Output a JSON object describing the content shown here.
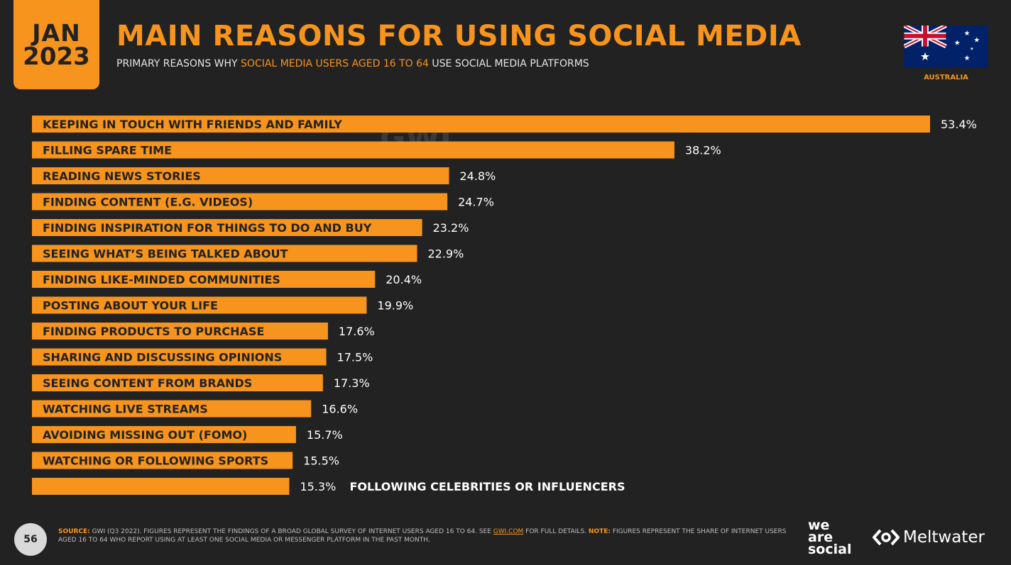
{
  "header": {
    "month": "JAN",
    "year": "2023",
    "title": "MAIN REASONS FOR USING SOCIAL MEDIA",
    "subtitle_pre": "PRIMARY REASONS WHY ",
    "subtitle_hl": "SOCIAL MEDIA USERS AGED 16 TO 64",
    "subtitle_post": " USE SOCIAL MEDIA PLATFORMS",
    "country": "AUSTRALIA"
  },
  "watermark": "GWI.",
  "chart_data": {
    "type": "bar",
    "orientation": "horizontal",
    "categories": [
      "KEEPING IN TOUCH WITH FRIENDS AND FAMILY",
      "FILLING SPARE TIME",
      "READING NEWS STORIES",
      "FINDING CONTENT (E.G. VIDEOS)",
      "FINDING INSPIRATION FOR THINGS TO DO AND BUY",
      "SEEING WHAT’S BEING TALKED ABOUT",
      "FINDING LIKE-MINDED COMMUNITIES",
      "POSTING ABOUT YOUR LIFE",
      "FINDING PRODUCTS TO PURCHASE",
      "SHARING AND DISCUSSING OPINIONS",
      "SEEING CONTENT FROM BRANDS",
      "WATCHING LIVE STREAMS",
      "AVOIDING MISSING OUT (FOMO)",
      "WATCHING OR FOLLOWING SPORTS",
      "FOLLOWING CELEBRITIES OR INFLUENCERS"
    ],
    "values": [
      53.4,
      38.2,
      24.8,
      24.7,
      23.2,
      22.9,
      20.4,
      19.9,
      17.6,
      17.5,
      17.3,
      16.6,
      15.7,
      15.5,
      15.3
    ],
    "value_labels": [
      "53.4%",
      "38.2%",
      "24.8%",
      "24.7%",
      "23.2%",
      "22.9%",
      "20.4%",
      "19.9%",
      "17.6%",
      "17.5%",
      "17.3%",
      "16.6%",
      "15.7%",
      "15.5%",
      "15.3%"
    ],
    "xlim": [
      0,
      53.4
    ],
    "bar_color": "#f7941d"
  },
  "footer": {
    "page": "56",
    "source_label": "SOURCE:",
    "source_text": " GWI (Q3 2022). FIGURES REPRESENT THE FINDINGS OF A BROAD GLOBAL SURVEY OF INTERNET USERS AGED 16 TO 64. SEE ",
    "link": "GWI.COM",
    "source_text2": " FOR FULL DETAILS. ",
    "note_label": "NOTE:",
    "note_text": " FIGURES REPRESENT THE SHARE OF INTERNET USERS AGED 16 TO 64 WHO REPORT USING AT LEAST ONE SOCIAL MEDIA OR MESSENGER PLATFORM IN THE PAST MONTH.",
    "brand1_l1": "we",
    "brand1_l2": "are",
    "brand1_l3": "social",
    "brand2": "Meltwater"
  }
}
